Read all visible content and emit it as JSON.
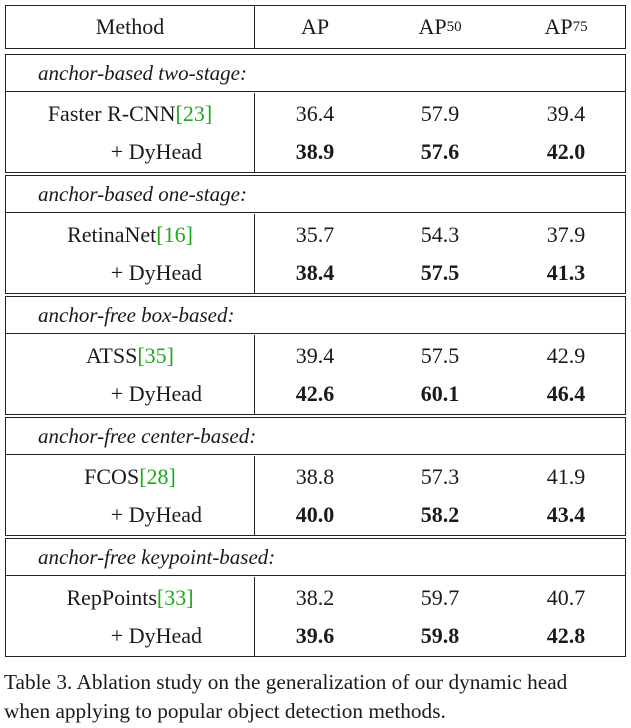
{
  "table": {
    "headers": {
      "method": "Method",
      "ap": "AP",
      "ap50_base": "AP",
      "ap50_sub": "50",
      "ap75_base": "AP",
      "ap75_sub": "75"
    },
    "groups": [
      {
        "title": "anchor-based two-stage:",
        "base": {
          "name": "Faster R-CNN ",
          "ref_open": "[",
          "ref": "23",
          "ref_close": "]",
          "ap": "36.4",
          "ap50": "57.9",
          "ap75": "39.4"
        },
        "dyhead": {
          "name": "+ DyHead",
          "ap": "38.9",
          "ap50": "57.6",
          "ap75": "42.0"
        }
      },
      {
        "title": "anchor-based one-stage:",
        "base": {
          "name": "RetinaNet ",
          "ref_open": "[",
          "ref": "16",
          "ref_close": "]",
          "ap": "35.7",
          "ap50": "54.3",
          "ap75": "37.9"
        },
        "dyhead": {
          "name": "+ DyHead",
          "ap": "38.4",
          "ap50": "57.5",
          "ap75": "41.3"
        }
      },
      {
        "title": "anchor-free box-based:",
        "base": {
          "name": "ATSS ",
          "ref_open": "[",
          "ref": "35",
          "ref_close": "]",
          "ap": "39.4",
          "ap50": "57.5",
          "ap75": "42.9"
        },
        "dyhead": {
          "name": "+ DyHead",
          "ap": "42.6",
          "ap50": "60.1",
          "ap75": "46.4"
        }
      },
      {
        "title": "anchor-free center-based:",
        "base": {
          "name": "FCOS ",
          "ref_open": "[",
          "ref": "28",
          "ref_close": "]",
          "ap": "38.8",
          "ap50": "57.3",
          "ap75": "41.9"
        },
        "dyhead": {
          "name": "+ DyHead",
          "ap": "40.0",
          "ap50": "58.2",
          "ap75": "43.4"
        }
      },
      {
        "title": "anchor-free keypoint-based:",
        "base": {
          "name": "RepPoints ",
          "ref_open": "[",
          "ref": "33",
          "ref_close": "]",
          "ap": "38.2",
          "ap50": "59.7",
          "ap75": "40.7"
        },
        "dyhead": {
          "name": "+ DyHead",
          "ap": "39.6",
          "ap50": "59.8",
          "ap75": "42.8"
        }
      }
    ]
  },
  "caption": {
    "line1": "Table 3. Ablation study on the generalization of our dynamic head",
    "line2": "when applying to popular object detection methods."
  },
  "colors": {
    "ref_link": "#1ea81e",
    "border": "#222222"
  }
}
